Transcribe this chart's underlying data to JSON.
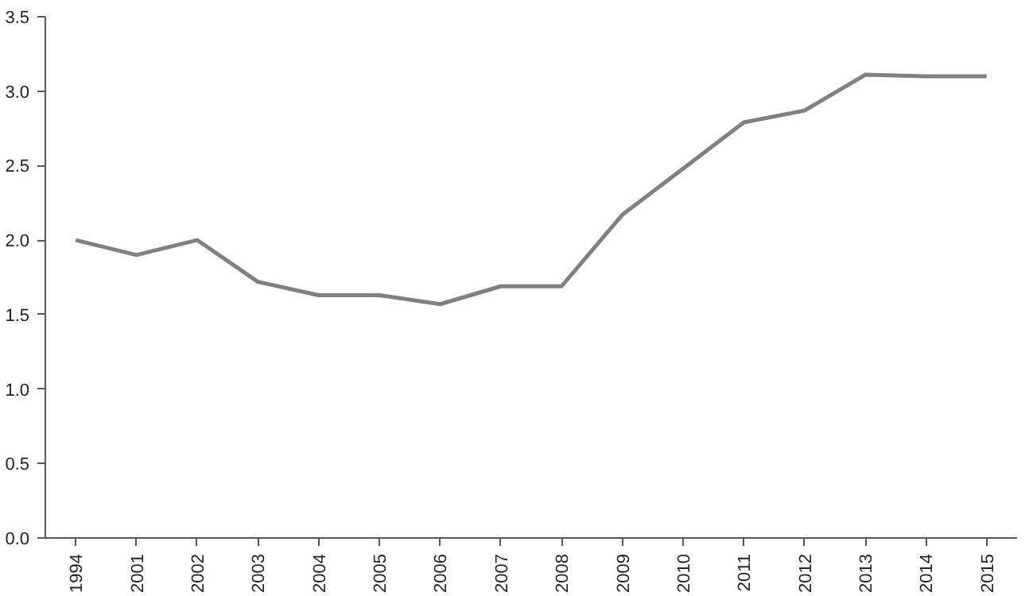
{
  "chart_data": {
    "type": "line",
    "categories": [
      "1994",
      "2001",
      "2002",
      "2003",
      "2004",
      "2005",
      "2006",
      "2007",
      "2008",
      "2009",
      "2010",
      "2011",
      "2012",
      "2013",
      "2014",
      "2015"
    ],
    "series": [
      {
        "color": "#808080",
        "values": [
          2.0,
          1.9,
          2.0,
          1.72,
          1.63,
          1.63,
          1.57,
          1.69,
          1.69,
          2.17,
          2.48,
          2.79,
          2.87,
          3.11,
          3.1,
          3.1
        ]
      }
    ],
    "ylim": [
      0,
      3.5
    ],
    "yticks": [
      {
        "value": 0,
        "label": "0.0"
      },
      {
        "value": 0.5,
        "label": "0.5"
      },
      {
        "value": 1,
        "label": "1.0"
      },
      {
        "value": 1.5,
        "label": "1.5"
      },
      {
        "value": 2,
        "label": "2.0"
      },
      {
        "value": 2.5,
        "label": "2.5"
      },
      {
        "value": 3,
        "label": "3.0"
      },
      {
        "value": 3.5,
        "label": "3.5"
      }
    ],
    "grid": false,
    "marker": "none",
    "line_style": "solid"
  }
}
